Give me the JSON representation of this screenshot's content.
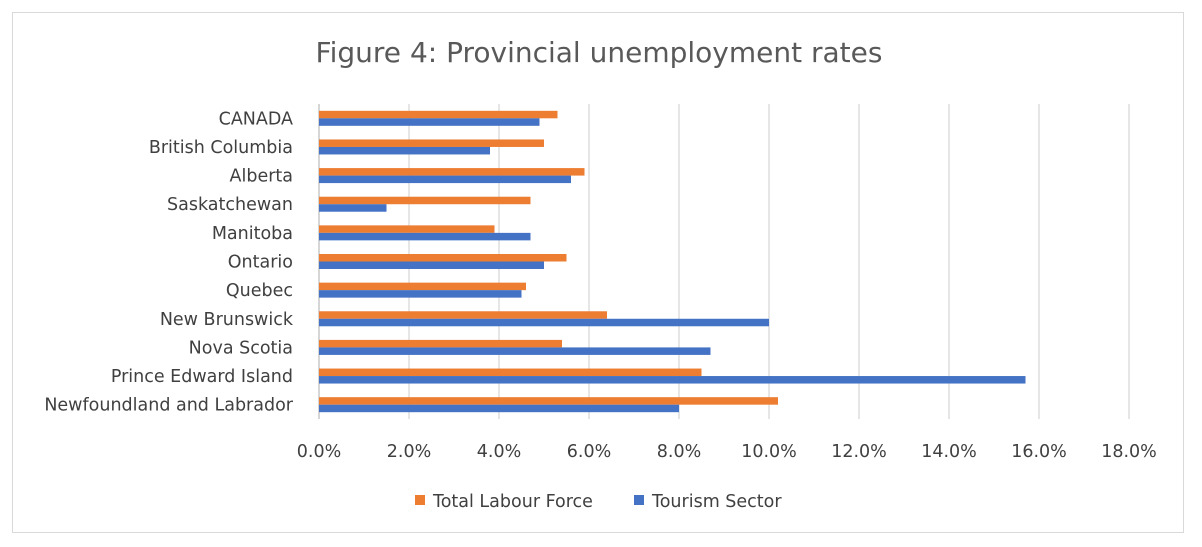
{
  "chart_data": {
    "type": "bar",
    "orientation": "horizontal",
    "title": "Figure 4: Provincial unemployment rates",
    "categories": [
      "CANADA",
      "British Columbia",
      "Alberta",
      "Saskatchewan",
      "Manitoba",
      "Ontario",
      "Quebec",
      "New Brunswick",
      "Nova Scotia",
      "Prince Edward Island",
      "Newfoundland and Labrador"
    ],
    "series": [
      {
        "name": "Total Labour Force",
        "color": "#ED7D31",
        "values": [
          5.3,
          5.0,
          5.9,
          4.7,
          3.9,
          5.5,
          4.6,
          6.4,
          5.4,
          8.5,
          10.2
        ]
      },
      {
        "name": "Tourism Sector",
        "color": "#4472C4",
        "values": [
          4.9,
          3.8,
          5.6,
          1.5,
          4.7,
          5.0,
          4.5,
          10.0,
          8.7,
          15.7,
          8.0
        ]
      }
    ],
    "xlim": [
      0,
      18
    ],
    "x_ticks": [
      "0.0%",
      "2.0%",
      "4.0%",
      "6.0%",
      "8.0%",
      "10.0%",
      "12.0%",
      "14.0%",
      "16.0%",
      "18.0%"
    ],
    "grid": "vertical",
    "legend_position": "bottom",
    "xlabel": "",
    "ylabel": ""
  }
}
